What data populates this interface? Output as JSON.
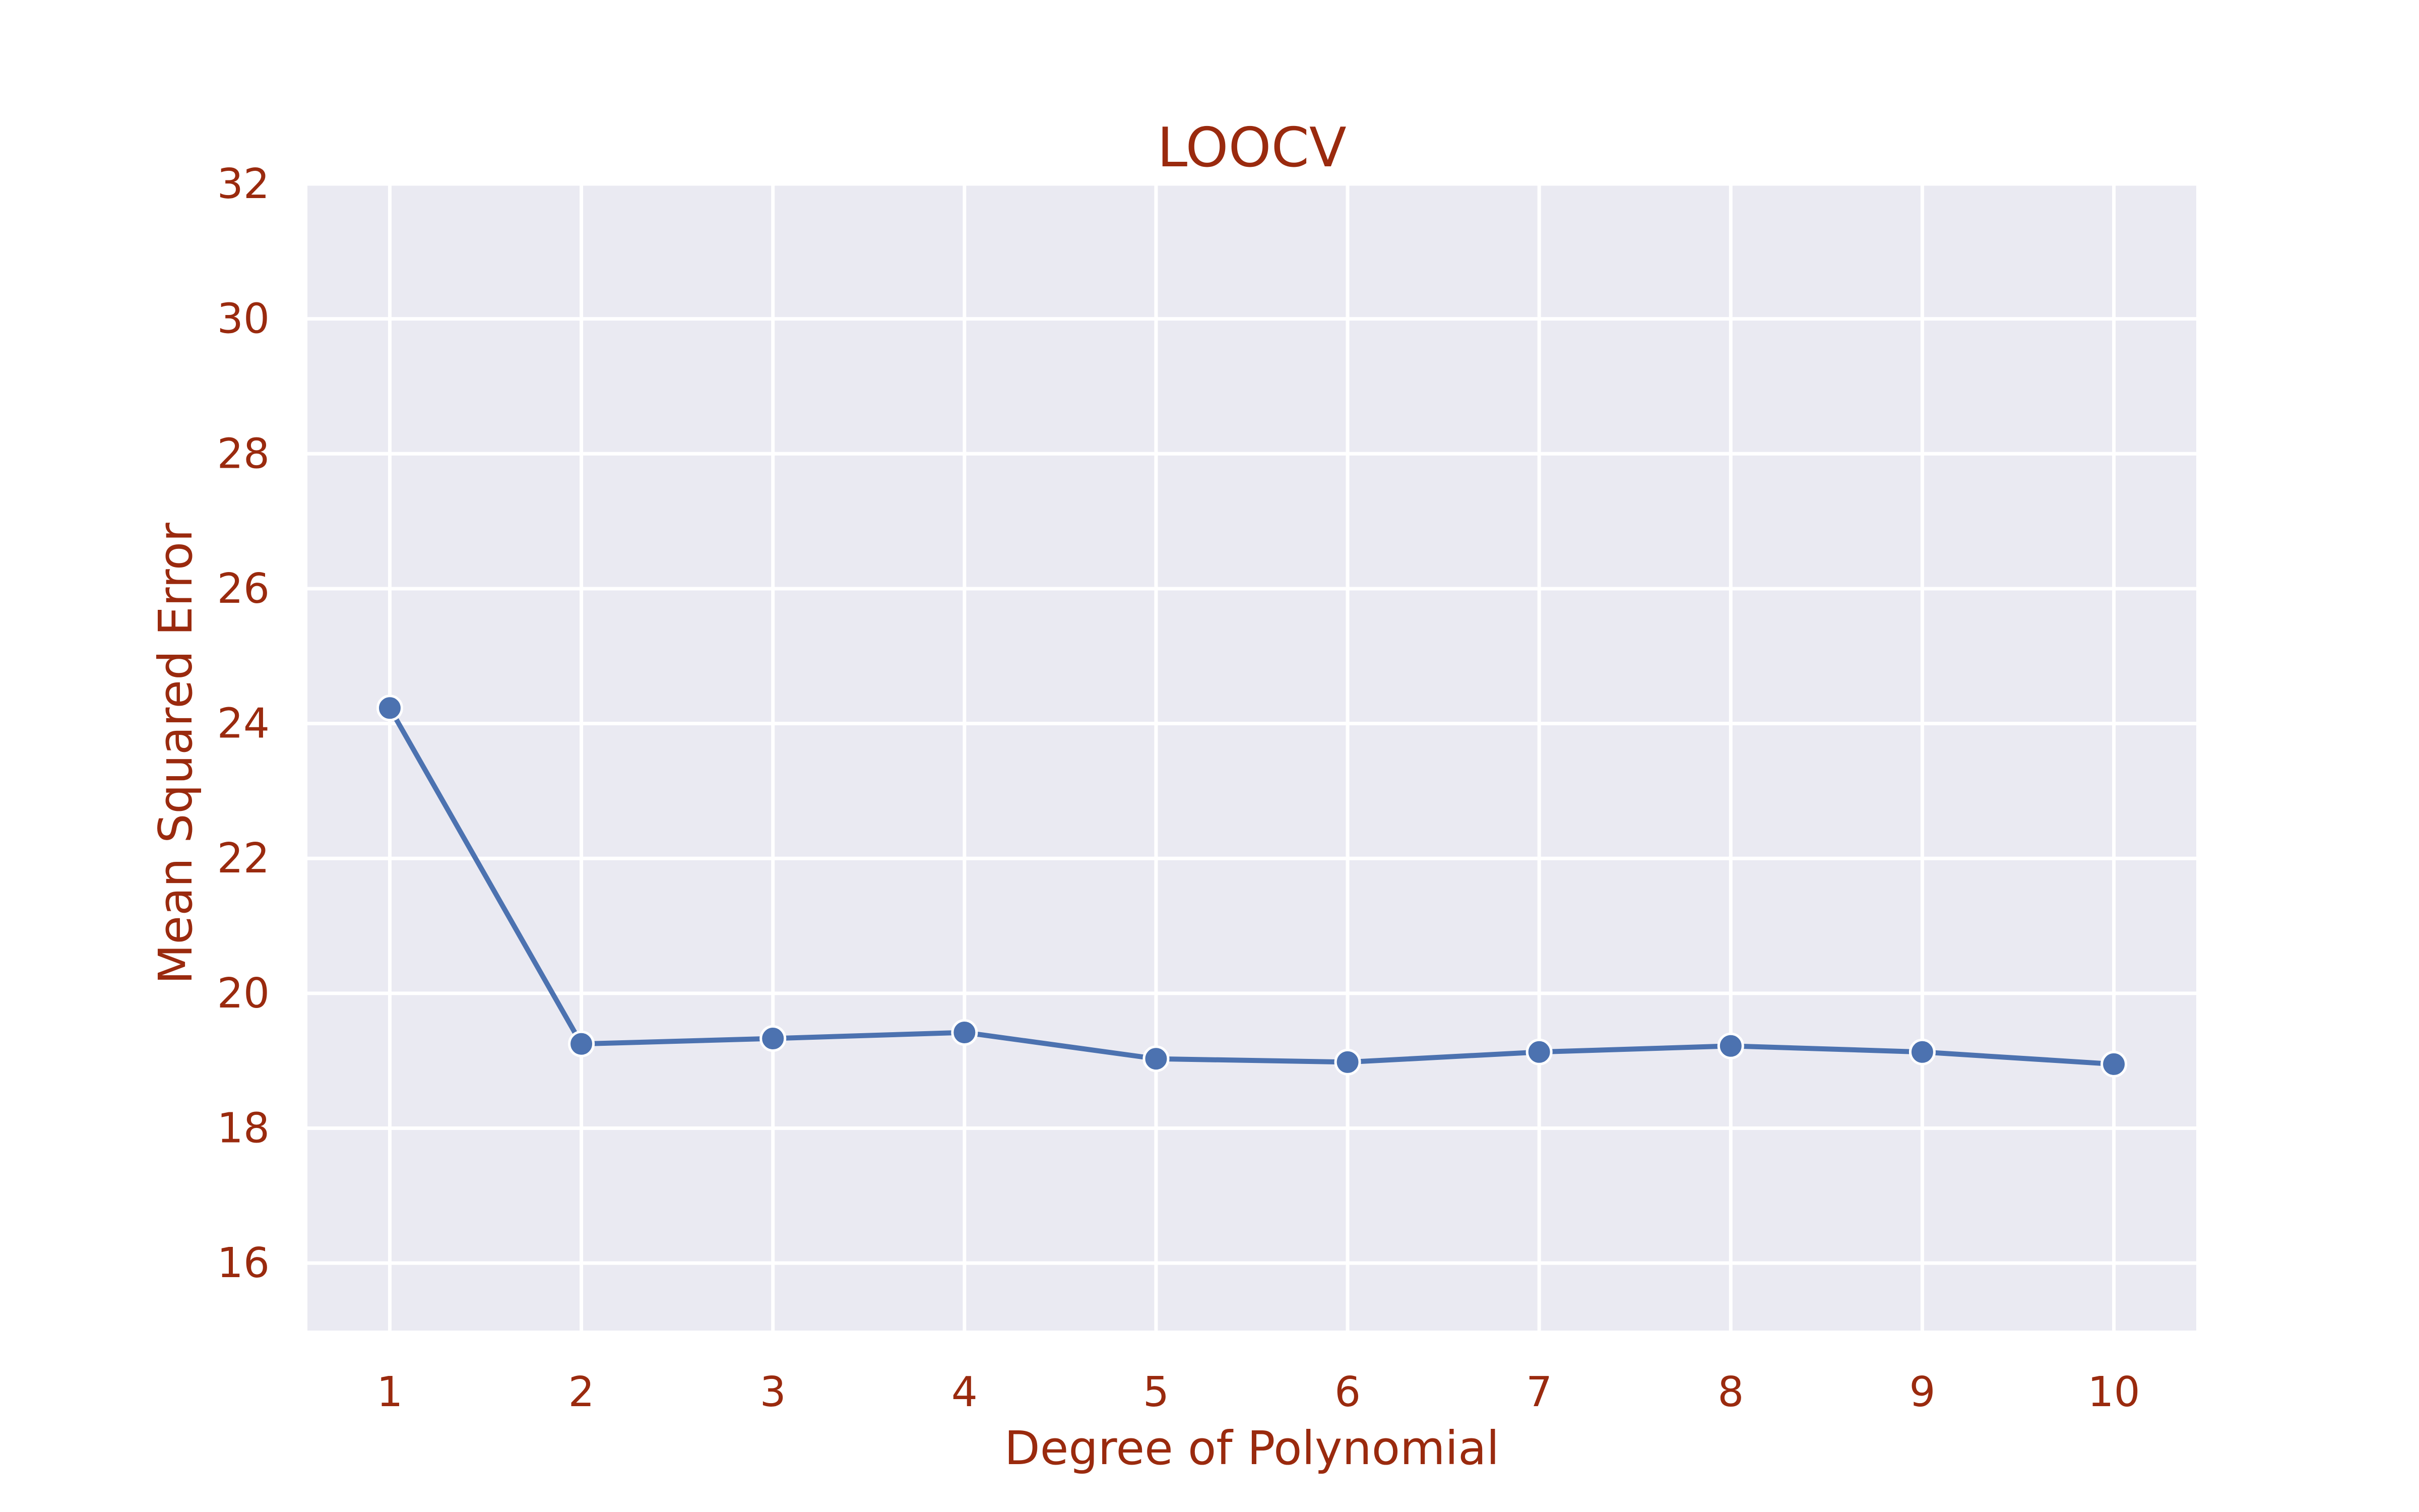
{
  "chart_data": {
    "type": "line",
    "title": "LOOCV",
    "xlabel": "Degree of Polynomial",
    "ylabel": "Mean Squared Error",
    "x": [
      1,
      2,
      3,
      4,
      5,
      6,
      7,
      8,
      9,
      10
    ],
    "x_tick_labels": [
      "1",
      "2",
      "3",
      "4",
      "5",
      "6",
      "7",
      "8",
      "9",
      "10"
    ],
    "series": [
      {
        "values": [
          24.23,
          19.25,
          19.33,
          19.42,
          19.03,
          18.98,
          19.13,
          19.22,
          19.13,
          18.95
        ]
      }
    ],
    "yticks": [
      16,
      18,
      20,
      22,
      24,
      26,
      28,
      30,
      32
    ],
    "y_tick_labels": [
      "16",
      "18",
      "20",
      "22",
      "24",
      "26",
      "28",
      "30",
      "32"
    ],
    "xlim": [
      0.57,
      10.43
    ],
    "ylim": [
      15,
      32
    ],
    "grid": true,
    "colors": {
      "background": "#eaeaf2",
      "line": "#4c72b0",
      "text": "#9a2a0e",
      "grid": "#ffffff"
    }
  }
}
